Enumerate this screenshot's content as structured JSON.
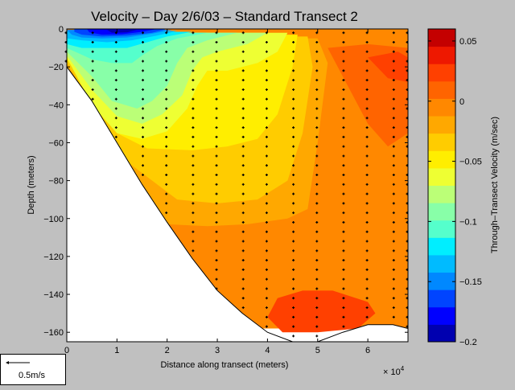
{
  "chart_data": {
    "type": "heatmap",
    "title": "Velocity – Day 2/6/03 – Standard Transect 2",
    "xlabel": "Distance along transect (meters)",
    "ylabel": "Depth (meters)",
    "x_multiplier": "× 10",
    "x_multiplier_exp": "4",
    "xlim": [
      0,
      68000
    ],
    "ylim": [
      -165,
      0
    ],
    "x_ticks": [
      0,
      10000,
      20000,
      30000,
      40000,
      50000,
      60000
    ],
    "x_tick_labels": [
      "0",
      "1",
      "2",
      "3",
      "4",
      "5",
      "6"
    ],
    "y_ticks": [
      0,
      -20,
      -40,
      -60,
      -80,
      -100,
      -120,
      -140,
      -160
    ],
    "y_tick_labels": [
      "0",
      "−20",
      "−40",
      "−60",
      "−80",
      "−100",
      "−120",
      "−140",
      "−160"
    ],
    "colorbar": {
      "label": "Through–Transect Velocity (m/sec)",
      "range": [
        -0.2,
        0.06
      ],
      "ticks": [
        0.05,
        0,
        -0.05,
        -0.1,
        -0.15,
        -0.2
      ],
      "tick_labels": [
        "0.05",
        "0",
        "−0.05",
        "−0.1",
        "−0.15",
        "−0.2"
      ],
      "colors": [
        "#0000b0",
        "#0000ff",
        "#0044ff",
        "#0088ff",
        "#00bbff",
        "#00eeff",
        "#55ffcc",
        "#88ffa8",
        "#bbff77",
        "#eeff33",
        "#ffee00",
        "#ffcc00",
        "#ffa800",
        "#ff8800",
        "#ff6400",
        "#ff4000",
        "#ee1800",
        "#c40000"
      ]
    },
    "bottom_profile": [
      [
        0,
        -20
      ],
      [
        5000,
        -38
      ],
      [
        10000,
        -60
      ],
      [
        15000,
        -82
      ],
      [
        20000,
        -102
      ],
      [
        25000,
        -121
      ],
      [
        30000,
        -138
      ],
      [
        35000,
        -150
      ],
      [
        40000,
        -160
      ],
      [
        45000,
        -165
      ],
      [
        50000,
        -165
      ],
      [
        55000,
        -160
      ],
      [
        60000,
        -156
      ],
      [
        65000,
        -156
      ],
      [
        68000,
        -158
      ]
    ],
    "contour_bands": [
      {
        "name": "base",
        "value": 0.01,
        "color": "#ff8800",
        "path": [
          [
            0,
            0
          ],
          [
            68000,
            0
          ],
          [
            68000,
            -158
          ],
          [
            0,
            -158
          ]
        ]
      },
      {
        "name": "surface-orange-right",
        "value": 0.03,
        "color": "#ff6400",
        "path": [
          [
            52000,
            -10
          ],
          [
            60000,
            -8
          ],
          [
            68000,
            -10
          ],
          [
            68000,
            -55
          ],
          [
            64000,
            -62
          ],
          [
            60000,
            -50
          ],
          [
            56000,
            -30
          ]
        ]
      },
      {
        "name": "surface-red-right",
        "value": 0.045,
        "color": "#ff4000",
        "path": [
          [
            60000,
            -15
          ],
          [
            66000,
            -12
          ],
          [
            68000,
            -15
          ],
          [
            68000,
            -28
          ],
          [
            64000,
            -26
          ]
        ]
      },
      {
        "name": "deep-red-pool",
        "value": 0.03,
        "color": "#ff4000",
        "path": [
          [
            40000,
            -152
          ],
          [
            42000,
            -142
          ],
          [
            47000,
            -138
          ],
          [
            53000,
            -138
          ],
          [
            60000,
            -144
          ],
          [
            61500,
            -150
          ],
          [
            58000,
            -158
          ],
          [
            50000,
            -160
          ],
          [
            43000,
            -160
          ]
        ]
      },
      {
        "name": "mid-orange",
        "value": -0.01,
        "color": "#ffa800",
        "path": [
          [
            0,
            -5
          ],
          [
            50000,
            -5
          ],
          [
            52000,
            -18
          ],
          [
            50000,
            -60
          ],
          [
            48000,
            -95
          ],
          [
            44000,
            -100
          ],
          [
            36000,
            -103
          ],
          [
            28000,
            -104
          ],
          [
            20000,
            -103
          ],
          [
            10000,
            -70
          ],
          [
            0,
            -20
          ]
        ]
      },
      {
        "name": "mid-orange2",
        "value": -0.02,
        "color": "#ffcc00",
        "path": [
          [
            0,
            -4
          ],
          [
            48000,
            -4
          ],
          [
            49000,
            -20
          ],
          [
            47000,
            -55
          ],
          [
            44000,
            -80
          ],
          [
            38000,
            -90
          ],
          [
            30000,
            -92
          ],
          [
            22000,
            -90
          ],
          [
            12000,
            -70
          ],
          [
            0,
            -18
          ]
        ]
      },
      {
        "name": "mid-yellow",
        "value": -0.04,
        "color": "#ffee00",
        "path": [
          [
            0,
            -3
          ],
          [
            46000,
            -3
          ],
          [
            45000,
            -20
          ],
          [
            42000,
            -45
          ],
          [
            38000,
            -58
          ],
          [
            32000,
            -62
          ],
          [
            25000,
            -64
          ],
          [
            16000,
            -63
          ],
          [
            10000,
            -55
          ],
          [
            0,
            -16
          ]
        ]
      },
      {
        "name": "yellow-green",
        "value": -0.05,
        "color": "#eeff33",
        "path": [
          [
            0,
            -2
          ],
          [
            44000,
            -2
          ],
          [
            42000,
            -12
          ],
          [
            38000,
            -18
          ],
          [
            32000,
            -22
          ],
          [
            28000,
            -22
          ],
          [
            26000,
            -30
          ],
          [
            24000,
            -42
          ],
          [
            20000,
            -54
          ],
          [
            15000,
            -58
          ],
          [
            10000,
            -55
          ],
          [
            5000,
            -40
          ],
          [
            0,
            -15
          ]
        ]
      },
      {
        "name": "green",
        "value": -0.07,
        "color": "#bbff77",
        "path": [
          [
            0,
            -2
          ],
          [
            40000,
            -2
          ],
          [
            36000,
            -8
          ],
          [
            30000,
            -12
          ],
          [
            27000,
            -15
          ],
          [
            25000,
            -22
          ],
          [
            23000,
            -35
          ],
          [
            19000,
            -45
          ],
          [
            15000,
            -50
          ],
          [
            10000,
            -46
          ],
          [
            5000,
            -32
          ],
          [
            0,
            -14
          ]
        ]
      },
      {
        "name": "aqua-green",
        "value": -0.09,
        "color": "#88ffa8",
        "path": [
          [
            0,
            -2
          ],
          [
            34000,
            -2
          ],
          [
            28000,
            -6
          ],
          [
            24000,
            -10
          ],
          [
            22000,
            -18
          ],
          [
            20000,
            -30
          ],
          [
            17000,
            -38
          ],
          [
            14000,
            -42
          ],
          [
            9000,
            -38
          ],
          [
            5000,
            -25
          ],
          [
            0,
            -12
          ]
        ]
      },
      {
        "name": "cyan-green",
        "value": -0.1,
        "color": "#55ffcc",
        "path": [
          [
            0,
            -2
          ],
          [
            28000,
            -2
          ],
          [
            22000,
            -5
          ],
          [
            18000,
            -9
          ],
          [
            15000,
            -14
          ],
          [
            13000,
            -18
          ],
          [
            9000,
            -18
          ],
          [
            5000,
            -16
          ],
          [
            0,
            -10
          ]
        ]
      },
      {
        "name": "cyan",
        "value": -0.12,
        "color": "#00eeff",
        "path": [
          [
            0,
            -1.5
          ],
          [
            25000,
            -1.5
          ],
          [
            20000,
            -4
          ],
          [
            16000,
            -7
          ],
          [
            12000,
            -10
          ],
          [
            7000,
            -10
          ],
          [
            3000,
            -10
          ],
          [
            0,
            -8
          ]
        ]
      },
      {
        "name": "light-blue",
        "value": -0.13,
        "color": "#00bbff",
        "path": [
          [
            0,
            -1
          ],
          [
            22000,
            -1
          ],
          [
            18000,
            -3.5
          ],
          [
            13000,
            -6
          ],
          [
            8000,
            -7
          ],
          [
            3000,
            -6
          ],
          [
            0,
            -5
          ]
        ]
      },
      {
        "name": "mid-blue",
        "value": -0.15,
        "color": "#0088ff",
        "path": [
          [
            0,
            -0.5
          ],
          [
            21000,
            -0.5
          ],
          [
            17000,
            -2.5
          ],
          [
            12000,
            -4.5
          ],
          [
            7000,
            -5
          ],
          [
            3000,
            -4.5
          ],
          [
            1000,
            -3
          ]
        ]
      },
      {
        "name": "blue",
        "value": -0.17,
        "color": "#0044ff",
        "path": [
          [
            1500,
            0
          ],
          [
            20000,
            0
          ],
          [
            17000,
            -2
          ],
          [
            12000,
            -3.5
          ],
          [
            7000,
            -4
          ],
          [
            3000,
            -3
          ],
          [
            1500,
            -1.5
          ]
        ]
      },
      {
        "name": "deep-blue",
        "value": -0.19,
        "color": "#0000ff",
        "path": [
          [
            4000,
            0
          ],
          [
            18000,
            0
          ],
          [
            15000,
            -1.5
          ],
          [
            11000,
            -2.8
          ],
          [
            7000,
            -3
          ],
          [
            4500,
            -1.8
          ]
        ]
      },
      {
        "name": "darkest-blue",
        "value": -0.2,
        "color": "#0000b0",
        "path": [
          [
            8000,
            -0.5
          ],
          [
            14000,
            -0.5
          ],
          [
            12000,
            -1.8
          ],
          [
            9000,
            -2
          ]
        ]
      }
    ],
    "stations_x": [
      0,
      5000,
      10000,
      15000,
      20000,
      25000,
      30000,
      35000,
      40000,
      45000,
      50000,
      55000,
      60000,
      65000,
      68000
    ],
    "sample_spacing_m": 5
  },
  "scale": {
    "label": "0.5m/s"
  }
}
